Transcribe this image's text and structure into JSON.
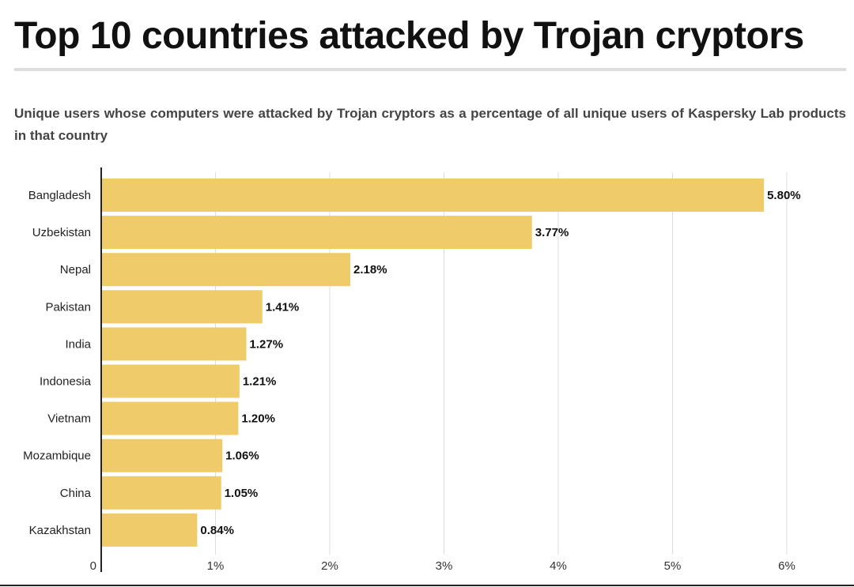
{
  "title": "Top 10 countries attacked by Trojan cryptors",
  "subtitle": "Unique users whose computers were attacked by Trojan cryptors as a percentage of all unique users of Kaspersky Lab products in that country",
  "colors": {
    "bar": "#f0cb6a",
    "grid": "#dcdcdc",
    "axis": "#222222"
  },
  "chart_data": {
    "type": "bar",
    "orientation": "horizontal",
    "categories": [
      "Bangladesh",
      "Uzbekistan",
      "Nepal",
      "Pakistan",
      "India",
      "Indonesia",
      "Vietnam",
      "Mozambique",
      "China",
      "Kazakhstan"
    ],
    "values": [
      5.8,
      3.77,
      2.18,
      1.41,
      1.27,
      1.21,
      1.2,
      1.06,
      1.05,
      0.84
    ],
    "value_labels": [
      "5.80%",
      "3.77%",
      "2.18%",
      "1.41%",
      "1.27%",
      "1.21%",
      "1.20%",
      "1.06%",
      "1.05%",
      "0.84%"
    ],
    "x_ticks": [
      0,
      1,
      2,
      3,
      4,
      5,
      6
    ],
    "x_tick_labels": [
      "0",
      "1%",
      "2%",
      "3%",
      "4%",
      "5%",
      "6%"
    ],
    "xlim": [
      0,
      6
    ],
    "grid": true,
    "legend": "none"
  }
}
